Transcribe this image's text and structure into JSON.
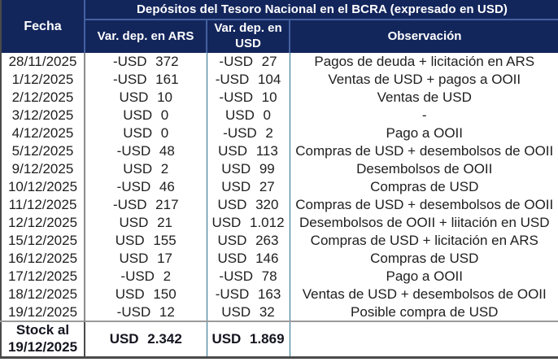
{
  "chart_data": {
    "type": "table",
    "title": "Depósitos del Tesoro Nacional en el BCRA (expresado en USD)",
    "columns": {
      "fecha": "Fecha",
      "ars": "Var. dep. en ARS",
      "usd": "Var. dep. en USD",
      "obs": "Observación"
    },
    "rows": [
      {
        "fecha": "28/11/2025",
        "ars": "-USD 372",
        "usd": "-USD 27",
        "obs": "Pagos de deuda + licitación en ARS"
      },
      {
        "fecha": "1/12/2025",
        "ars": "-USD 161",
        "usd": "-USD 104",
        "obs": "Ventas de USD + pagos a OOII"
      },
      {
        "fecha": "2/12/2025",
        "ars": "USD 10",
        "usd": "-USD 10",
        "obs": "Ventas de USD"
      },
      {
        "fecha": "3/12/2025",
        "ars": "USD 0",
        "usd": "USD 0",
        "obs": "-"
      },
      {
        "fecha": "4/12/2025",
        "ars": "USD 0",
        "usd": "-USD 2",
        "obs": "Pago a OOII"
      },
      {
        "fecha": "5/12/2025",
        "ars": "-USD 48",
        "usd": "USD 113",
        "obs": "Compras de USD + desembolsos de OOII"
      },
      {
        "fecha": "9/12/2025",
        "ars": "USD 2",
        "usd": "USD 99",
        "obs": "Desembolsos de OOII"
      },
      {
        "fecha": "10/12/2025",
        "ars": "-USD 46",
        "usd": "USD 27",
        "obs": "Compras de USD"
      },
      {
        "fecha": "11/12/2025",
        "ars": "-USD 217",
        "usd": "USD 320",
        "obs": "Compras de USD + desembolsos de OOII"
      },
      {
        "fecha": "12/12/2025",
        "ars": "USD 21",
        "usd": "USD 1.012",
        "obs": "Desembolsos de OOII + liitación en USD"
      },
      {
        "fecha": "15/12/2025",
        "ars": "USD 155",
        "usd": "USD 263",
        "obs": "Compras de USD + licitación en ARS"
      },
      {
        "fecha": "16/12/2025",
        "ars": "USD 17",
        "usd": "USD 146",
        "obs": "Compras de USD"
      },
      {
        "fecha": "17/12/2025",
        "ars": "-USD 2",
        "usd": "-USD 78",
        "obs": "Pago a OOII"
      },
      {
        "fecha": "18/12/2025",
        "ars": "USD 150",
        "usd": "-USD 163",
        "obs": "Ventas de USD + desembolsos de OOII"
      },
      {
        "fecha": "19/12/2025",
        "ars": "-USD 12",
        "usd": "USD 32",
        "obs": "Posible compra de USD"
      }
    ],
    "footer": {
      "label_line1": "Stock al",
      "label_line2": "19/12/2025",
      "ars": "USD 2.342",
      "usd": "USD 1.869",
      "obs": ""
    }
  },
  "colors": {
    "header_bg": "#13265c",
    "header_line": "#44619f",
    "separator_teal": "#2b7090",
    "separator_gray": "#8c8c8c",
    "outer_border": "#4a4a4a",
    "text": "#202020"
  }
}
